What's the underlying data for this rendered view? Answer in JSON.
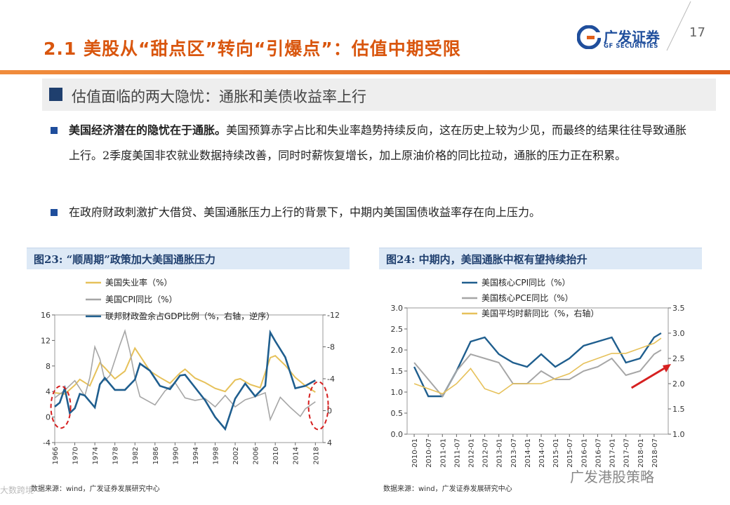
{
  "header": {
    "title": "2.1 美股从“甜点区”转向“引爆点”：估值中期受限",
    "logo_cn": "广发证券",
    "logo_en": "GF SECURITIES",
    "page_number": "17",
    "accent_color": "#d9560e",
    "brand_color": "#1f4e9c"
  },
  "section": {
    "heading": "估值面临的两大隐忧：通胀和美债收益率上行"
  },
  "bullets": [
    {
      "bold": "美国经济潜在的隐忧在于通胀。",
      "text": "美国预算赤字占比和失业率趋势持续反向，这在历史上较为少见，而最终的结果往往导致通胀上行。2季度美国非农就业数据持续改善，同时时薪恢复增长，加上原油价格的同比拉动，通胀的压力正在积累。"
    },
    {
      "bold": "",
      "text": "在政府财政刺激扩大借贷、美国通胀压力上行的背景下，中期内美国国债收益率存在向上压力。"
    }
  ],
  "chart_data": [
    {
      "type": "line",
      "caption": "图23: “顺周期”政策加大美国通胀压力",
      "source": "数据来源：wind，广发证券发展研究中心",
      "left_axis": {
        "range": [
          -4,
          16
        ],
        "ticks": [
          "16",
          "12",
          "8",
          "4",
          "0",
          "-4"
        ]
      },
      "right_axis": {
        "range": [
          -12,
          4
        ],
        "reversed": true,
        "ticks": [
          "-12",
          "-8",
          "-4",
          "0",
          "4"
        ]
      },
      "x_ticks": [
        "1966",
        "1970",
        "1974",
        "1978",
        "1982",
        "1986",
        "1990",
        "1994",
        "1998",
        "2002",
        "2006",
        "2010",
        "2014",
        "2018"
      ],
      "series": [
        {
          "name": "美国失业率（%）",
          "axis": "left",
          "color": "#e6c15a",
          "x": [
            1966,
            1968,
            1970,
            1971,
            1973,
            1975,
            1976,
            1978,
            1980,
            1982,
            1983,
            1985,
            1987,
            1989,
            1991,
            1992,
            1994,
            1996,
            1998,
            2000,
            2002,
            2003,
            2005,
            2007,
            2009,
            2010,
            2012,
            2014,
            2016,
            2018
          ],
          "values": [
            3.8,
            3.6,
            5.0,
            5.9,
            4.9,
            8.5,
            7.7,
            6.0,
            7.2,
            10.8,
            9.6,
            7.2,
            6.2,
            5.3,
            6.9,
            7.5,
            6.1,
            5.4,
            4.5,
            4.0,
            5.8,
            6.0,
            5.1,
            4.6,
            9.3,
            9.6,
            8.1,
            6.2,
            4.9,
            3.9
          ]
        },
        {
          "name": "美国CPI同比（%）",
          "axis": "left",
          "color": "#a6a6a6",
          "x": [
            1966,
            1968,
            1970,
            1972,
            1973,
            1974,
            1975,
            1976,
            1977,
            1979,
            1980,
            1981,
            1982,
            1983,
            1986,
            1988,
            1990,
            1992,
            1994,
            1996,
            1998,
            2000,
            2002,
            2004,
            2006,
            2008,
            2009,
            2011,
            2013,
            2015,
            2016,
            2018
          ],
          "values": [
            3.0,
            4.2,
            5.7,
            3.3,
            6.2,
            11.0,
            9.1,
            5.7,
            6.5,
            11.3,
            13.5,
            10.3,
            6.2,
            3.2,
            1.9,
            4.1,
            5.4,
            3.0,
            2.6,
            2.9,
            1.6,
            3.4,
            1.6,
            2.7,
            3.2,
            3.8,
            -0.4,
            3.1,
            1.5,
            0.1,
            1.3,
            2.4
          ]
        },
        {
          "name": "联邦财政盈余占GDP比例（%，右轴，逆序）",
          "axis": "right",
          "color": "#1f5e8e",
          "x": [
            1966,
            1967,
            1968,
            1969,
            1970,
            1971,
            1972,
            1974,
            1975,
            1976,
            1978,
            1980,
            1982,
            1983,
            1985,
            1987,
            1989,
            1991,
            1992,
            1994,
            1996,
            1998,
            2000,
            2002,
            2004,
            2006,
            2008,
            2009,
            2010,
            2012,
            2014,
            2016,
            2018
          ],
          "values": [
            -0.5,
            -1.0,
            -2.8,
            0.3,
            -0.3,
            -2.1,
            -1.9,
            -0.4,
            -3.3,
            -4.1,
            -2.6,
            -2.6,
            -3.9,
            -5.9,
            -5.0,
            -3.1,
            -2.7,
            -4.4,
            -4.5,
            -2.9,
            -1.3,
            0.8,
            2.3,
            -1.5,
            -3.4,
            -1.8,
            -3.1,
            -9.8,
            -8.7,
            -6.7,
            -2.8,
            -3.1,
            -3.8
          ]
        }
      ]
    },
    {
      "type": "line",
      "caption": "图24: 中期内，美国通胀中枢有望持续抬升",
      "source": "数据来源：wind，广发证券发展研究中心",
      "left_axis": {
        "range": [
          0.0,
          3.0
        ],
        "ticks": [
          "3.0",
          "2.5",
          "2.0",
          "1.5",
          "1.0",
          "0.5",
          "0.0"
        ]
      },
      "right_axis": {
        "range": [
          1.0,
          3.5
        ],
        "ticks": [
          "3.5",
          "3.0",
          "2.5",
          "2.0",
          "1.5",
          "1.0"
        ]
      },
      "x_ticks": [
        "2010-01",
        "2010-07",
        "2011-01",
        "2011-07",
        "2012-01",
        "2012-07",
        "2013-01",
        "2013-07",
        "2014-01",
        "2014-07",
        "2015-01",
        "2015-07",
        "2016-01",
        "2016-07",
        "2017-01",
        "2017-07",
        "2018-01",
        "2018-07"
      ],
      "series": [
        {
          "name": "美国核心CPI同比（%）",
          "axis": "left",
          "color": "#1f5e8e",
          "x": [
            0,
            1,
            2,
            3,
            4,
            5,
            6,
            7,
            8,
            9,
            10,
            11,
            12,
            13,
            14,
            15,
            16,
            17,
            17.5
          ],
          "values": [
            1.6,
            0.9,
            0.9,
            1.5,
            2.2,
            2.3,
            1.9,
            1.7,
            1.6,
            1.9,
            1.6,
            1.8,
            2.1,
            2.2,
            2.3,
            1.7,
            1.8,
            2.3,
            2.4
          ]
        },
        {
          "name": "美国核心PCE同比（%）",
          "axis": "left",
          "color": "#a6a6a6",
          "x": [
            0,
            1,
            2,
            3,
            4,
            5,
            6,
            7,
            8,
            9,
            10,
            11,
            12,
            13,
            14,
            15,
            16,
            17,
            17.5
          ],
          "values": [
            1.7,
            1.3,
            0.9,
            1.5,
            1.9,
            1.8,
            1.7,
            1.2,
            1.2,
            1.5,
            1.3,
            1.3,
            1.5,
            1.6,
            1.8,
            1.4,
            1.5,
            1.9,
            2.0
          ]
        },
        {
          "name": "美国平均时薪同比（%，右轴）",
          "axis": "right",
          "color": "#e6c15a",
          "x": [
            0,
            1,
            2,
            3,
            4,
            5,
            6,
            7,
            8,
            9,
            10,
            11,
            12,
            13,
            14,
            15,
            16,
            17,
            17.5
          ],
          "values": [
            2.0,
            1.9,
            1.8,
            2.0,
            2.3,
            1.9,
            1.8,
            2.0,
            2.0,
            2.0,
            2.1,
            2.2,
            2.4,
            2.5,
            2.6,
            2.6,
            2.7,
            2.8,
            2.9
          ]
        }
      ]
    }
  ],
  "watermarks": {
    "bottom_left": "大数跨境",
    "bottom_right": "广发港股策略"
  }
}
